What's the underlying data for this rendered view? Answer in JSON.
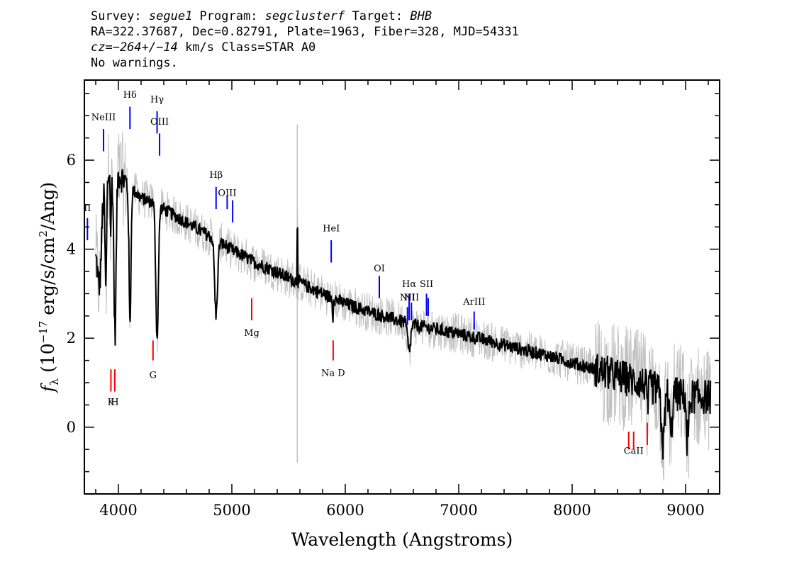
{
  "header": {
    "line1_prefix": "Survey: ",
    "survey": "segue1",
    "line1_mid": " Program: ",
    "program": "segclusterf",
    "line1_mid2": " Target: ",
    "target": "BHB",
    "line2": "RA=322.37687, Dec=0.82791, Plate=1963, Fiber=328, MJD=54331",
    "cz": "cz=−264+/−14",
    "line3_rest": " km/s Class=STAR A0",
    "line4": "No warnings."
  },
  "chart_data": {
    "type": "line",
    "xlabel": "Wavelength (Angstroms)",
    "ylabel_parts": [
      "f",
      "λ",
      " (10",
      "−17",
      " erg/s/cm",
      "2",
      "/Ang)"
    ],
    "xlim": [
      3700,
      9300
    ],
    "ylim": [
      -1.5,
      7.8
    ],
    "xticks": [
      4000,
      5000,
      6000,
      7000,
      8000,
      9000
    ],
    "yticks": [
      0,
      2,
      4,
      6
    ],
    "grid": false,
    "colors": {
      "flux": "#000000",
      "noise": "#c0c0c0",
      "emission": "#0000ff",
      "absorption": "#ff0000"
    },
    "continuum": [
      [
        3800,
        4.0
      ],
      [
        3860,
        5.4
      ],
      [
        3920,
        5.7
      ],
      [
        4000,
        5.7
      ],
      [
        4100,
        5.4
      ],
      [
        4200,
        5.15
      ],
      [
        4300,
        5.05
      ],
      [
        4400,
        4.9
      ],
      [
        4500,
        4.75
      ],
      [
        4600,
        4.6
      ],
      [
        4700,
        4.45
      ],
      [
        4800,
        4.3
      ],
      [
        4900,
        4.15
      ],
      [
        5000,
        3.98
      ],
      [
        5100,
        3.85
      ],
      [
        5200,
        3.7
      ],
      [
        5300,
        3.6
      ],
      [
        5400,
        3.48
      ],
      [
        5500,
        3.35
      ],
      [
        5600,
        3.25
      ],
      [
        5700,
        3.12
      ],
      [
        5800,
        3.0
      ],
      [
        5900,
        2.88
      ],
      [
        6000,
        2.78
      ],
      [
        6200,
        2.6
      ],
      [
        6400,
        2.45
      ],
      [
        6600,
        2.3
      ],
      [
        6800,
        2.2
      ],
      [
        7000,
        2.1
      ],
      [
        7200,
        1.98
      ],
      [
        7400,
        1.85
      ],
      [
        7600,
        1.72
      ],
      [
        7800,
        1.6
      ],
      [
        8000,
        1.45
      ],
      [
        8200,
        1.3
      ],
      [
        8400,
        1.15
      ],
      [
        8600,
        1.0
      ],
      [
        8800,
        0.8
      ],
      [
        9000,
        0.7
      ],
      [
        9200,
        0.68
      ]
    ],
    "absorption_features": [
      [
        3835,
        25,
        1.6
      ],
      [
        3889,
        10,
        2.4
      ],
      [
        3933,
        6,
        1.4
      ],
      [
        3970,
        14,
        3.6
      ],
      [
        4102,
        12,
        3.1
      ],
      [
        4341,
        16,
        3.0
      ],
      [
        4861,
        18,
        1.7
      ],
      [
        6563,
        18,
        0.65
      ],
      [
        8800,
        20,
        1.2
      ],
      [
        8870,
        15,
        1.0
      ],
      [
        9020,
        15,
        0.9
      ],
      [
        8665,
        10,
        0.5
      ]
    ],
    "spikes": [
      [
        5577,
        1.3
      ],
      [
        5890,
        -0.4
      ],
      [
        9010,
        -0.5
      ]
    ],
    "sky_line": {
      "x": 5577,
      "y0": -0.8,
      "y1": 6.8
    },
    "emission_lines": [
      {
        "label": "II",
        "x": 3727,
        "y0": 4.2,
        "y1": 4.7,
        "label_y": 4.85
      },
      {
        "label": "NeIII",
        "x": 3869,
        "y0": 6.2,
        "y1": 6.7,
        "label_y": 6.9
      },
      {
        "label": "Hδ",
        "x": 4102,
        "y0": 6.7,
        "y1": 7.2,
        "label_y": 7.4
      },
      {
        "label": "Hγ",
        "x": 4341,
        "y0": 6.6,
        "y1": 7.1,
        "label_y": 7.3
      },
      {
        "label": "OIII",
        "x": 4363,
        "y0": 6.1,
        "y1": 6.6,
        "label_y": 6.8
      },
      {
        "label": "Hβ",
        "x": 4861,
        "y0": 4.9,
        "y1": 5.4,
        "label_y": 5.6
      },
      {
        "label": "OIII",
        "x": 4959,
        "y0": 4.9,
        "y1": 5.2,
        "label_y": 5.2
      },
      {
        "label": "",
        "x": 5007,
        "y0": 4.6,
        "y1": 5.1,
        "label_y": 5.1
      },
      {
        "label": "HeI",
        "x": 5876,
        "y0": 3.7,
        "y1": 4.2,
        "label_y": 4.4
      },
      {
        "label": "OI",
        "x": 6300,
        "y0": 2.9,
        "y1": 3.4,
        "label_y": 3.5
      },
      {
        "label": "NII",
        "x": 6548,
        "y0": 2.3,
        "y1": 2.7,
        "label_y": 2.85
      },
      {
        "label": "Hα",
        "x": 6563,
        "y0": 2.4,
        "y1": 3.0,
        "label_y": 3.15
      },
      {
        "label": "NII",
        "x": 6583,
        "y0": 2.4,
        "y1": 2.8,
        "label_y": 2.85
      },
      {
        "label": "SII",
        "x": 6716,
        "y0": 2.5,
        "y1": 3.0,
        "label_y": 3.15
      },
      {
        "label": "",
        "x": 6731,
        "y0": 2.5,
        "y1": 2.9,
        "label_y": 2.9
      },
      {
        "label": "ArIII",
        "x": 7136,
        "y0": 2.2,
        "y1": 2.6,
        "label_y": 2.75
      }
    ],
    "absorption_lines": [
      {
        "label": "K",
        "x": 3934,
        "y0": 0.8,
        "y1": 1.3,
        "label_y": 0.5
      },
      {
        "label": "H",
        "x": 3968,
        "y0": 0.8,
        "y1": 1.3,
        "label_y": 0.5
      },
      {
        "label": "G",
        "x": 4305,
        "y0": 1.5,
        "y1": 1.95,
        "label_y": 1.1
      },
      {
        "label": "Mg",
        "x": 5175,
        "y0": 2.4,
        "y1": 2.9,
        "label_y": 2.05
      },
      {
        "label": "Na  D",
        "x": 5893,
        "y0": 1.5,
        "y1": 1.95,
        "label_y": 1.15
      },
      {
        "label": "",
        "x": 8498,
        "y0": -0.5,
        "y1": -0.1,
        "label_y": -0.5
      },
      {
        "label": "CaII",
        "x": 8542,
        "y0": -0.5,
        "y1": -0.1,
        "label_y": -0.6
      },
      {
        "label": "",
        "x": 8662,
        "y0": -0.4,
        "y1": 0.1,
        "label_y": -0.4
      }
    ]
  }
}
